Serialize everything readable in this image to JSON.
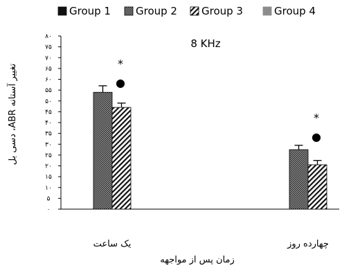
{
  "chart_data": {
    "type": "bar",
    "title": "8 KHz",
    "categories": [
      "یک ساعت",
      "چهارده روز"
    ],
    "xlabel": "زمان پس از مواجهه",
    "ylabel": "تغییر آستانه ABR، دسی بل",
    "ylim": [
      0,
      80
    ],
    "y_ticks": [
      "۰",
      "۵",
      "۱۰",
      "۱۵",
      "۲۰",
      "۲۵",
      "۳۰",
      "۳۵",
      "۴۰",
      "۴۵",
      "۵۰",
      "۵۵",
      "۶۰",
      "۶۵",
      "۷۰",
      "۷۵",
      "۸۰"
    ],
    "legend_position": "top",
    "grid": false,
    "series": [
      {
        "name": "Group 1",
        "values": [
          0,
          0
        ],
        "errors": [
          0,
          0
        ],
        "color": "#111111",
        "pattern": "solid"
      },
      {
        "name": "Group 2",
        "values": [
          54,
          27.5
        ],
        "errors": [
          3,
          2
        ],
        "color": "#4a4a4a",
        "pattern": "crosshatch"
      },
      {
        "name": "Group 3",
        "values": [
          47,
          20.5
        ],
        "errors": [
          2,
          2
        ],
        "color": "#1a1a1a",
        "pattern": "diagonal"
      },
      {
        "name": "Group 4",
        "values": [
          0,
          0
        ],
        "errors": [
          0,
          0
        ],
        "color": "#8c8c8c",
        "pattern": "solid"
      }
    ],
    "annotations": [
      {
        "category_index": 0,
        "symbol": "*",
        "y": 68
      },
      {
        "category_index": 0,
        "symbol": "●",
        "y": 58
      },
      {
        "category_index": 1,
        "symbol": "*",
        "y": 43
      },
      {
        "category_index": 1,
        "symbol": "●",
        "y": 33
      }
    ]
  }
}
